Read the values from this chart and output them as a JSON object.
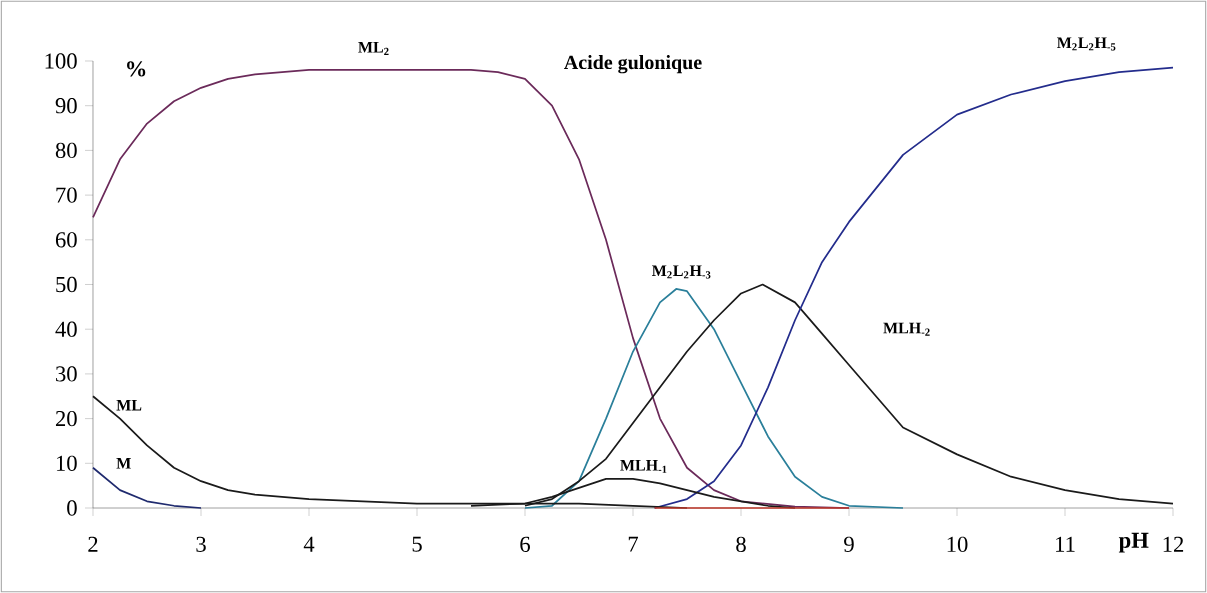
{
  "chart_data": {
    "type": "line",
    "title": "Acide gulonique",
    "xlabel": "pH",
    "ylabel": "%",
    "xlim": [
      2,
      12
    ],
    "ylim": [
      0,
      100
    ],
    "xticks": [
      2,
      3,
      4,
      5,
      6,
      7,
      8,
      9,
      10,
      11,
      12
    ],
    "yticks": [
      0,
      10,
      20,
      30,
      40,
      50,
      60,
      70,
      80,
      90,
      100
    ],
    "grid": false,
    "marker": "none",
    "line_style": "solid",
    "series": [
      {
        "name": "ML$_{2}$",
        "color": "#6b2a5a",
        "x": [
          2,
          2.25,
          2.5,
          2.75,
          3,
          3.25,
          3.5,
          4,
          5,
          5.5,
          5.75,
          6,
          6.25,
          6.5,
          6.75,
          7,
          7.25,
          7.5,
          7.75,
          8,
          8.5,
          9
        ],
        "values": [
          65,
          78,
          86,
          91,
          94,
          96,
          97,
          98,
          98,
          98,
          97.5,
          96,
          90,
          78,
          60,
          38,
          20,
          9,
          4,
          1.5,
          0.3,
          0
        ]
      },
      {
        "name": "M$_{2}$L$_{2}$H$_{-3}$",
        "color": "#2a7f9a",
        "x": [
          6,
          6.25,
          6.5,
          6.75,
          7,
          7.25,
          7.4,
          7.5,
          7.75,
          8,
          8.25,
          8.5,
          8.75,
          9,
          9.5
        ],
        "values": [
          0,
          0.5,
          6,
          20,
          35,
          46,
          49,
          48.5,
          40,
          28,
          16,
          7,
          2.5,
          0.5,
          0
        ]
      },
      {
        "name": "MLH$_{-2}$",
        "color": "#1a1a1a",
        "x": [
          6,
          6.25,
          6.5,
          6.75,
          7,
          7.25,
          7.5,
          7.75,
          8,
          8.2,
          8.5,
          8.75,
          9,
          9.5,
          10,
          10.5,
          11,
          11.5,
          12
        ],
        "values": [
          0.5,
          2,
          6,
          11,
          19,
          27,
          35,
          42,
          48,
          50,
          46,
          39,
          32,
          18,
          12,
          7,
          4,
          2,
          1
        ]
      },
      {
        "name": "M$_{2}$L$_{2}$H$_{-5}$",
        "color": "#232c8c",
        "x": [
          7.2,
          7.5,
          7.75,
          8,
          8.25,
          8.5,
          8.75,
          9,
          9.5,
          10,
          10.5,
          11,
          11.5,
          12
        ],
        "values": [
          0,
          2,
          6,
          14,
          27,
          42,
          55,
          64,
          79,
          88,
          92.5,
          95.5,
          97.5,
          98.5
        ]
      },
      {
        "name": "MLH$_{-1}$",
        "color": "#1a1a1a",
        "x": [
          5.5,
          6,
          6.25,
          6.5,
          6.75,
          7,
          7.25,
          7.5,
          7.75,
          8,
          8.25,
          8.5
        ],
        "values": [
          0.5,
          1,
          2.5,
          4.5,
          6.5,
          6.5,
          5.5,
          4,
          2.5,
          1.5,
          0.5,
          0
        ]
      },
      {
        "name": "ML",
        "color": "#1a1a1a",
        "x": [
          2,
          2.25,
          2.5,
          2.75,
          3,
          3.25,
          3.5,
          4,
          5,
          6,
          6.5,
          7,
          7.5
        ],
        "values": [
          25,
          20,
          14,
          9,
          6,
          4,
          3,
          2,
          1,
          1,
          1,
          0.5,
          0
        ]
      },
      {
        "name": "M",
        "color": "#1f2a6e",
        "x": [
          2,
          2.25,
          2.5,
          2.75,
          3
        ],
        "values": [
          9,
          4,
          1.5,
          0.5,
          0
        ]
      },
      {
        "color": "#c0392b",
        "x": [
          7.2,
          8,
          9
        ],
        "values": [
          0,
          0,
          0
        ]
      }
    ]
  }
}
